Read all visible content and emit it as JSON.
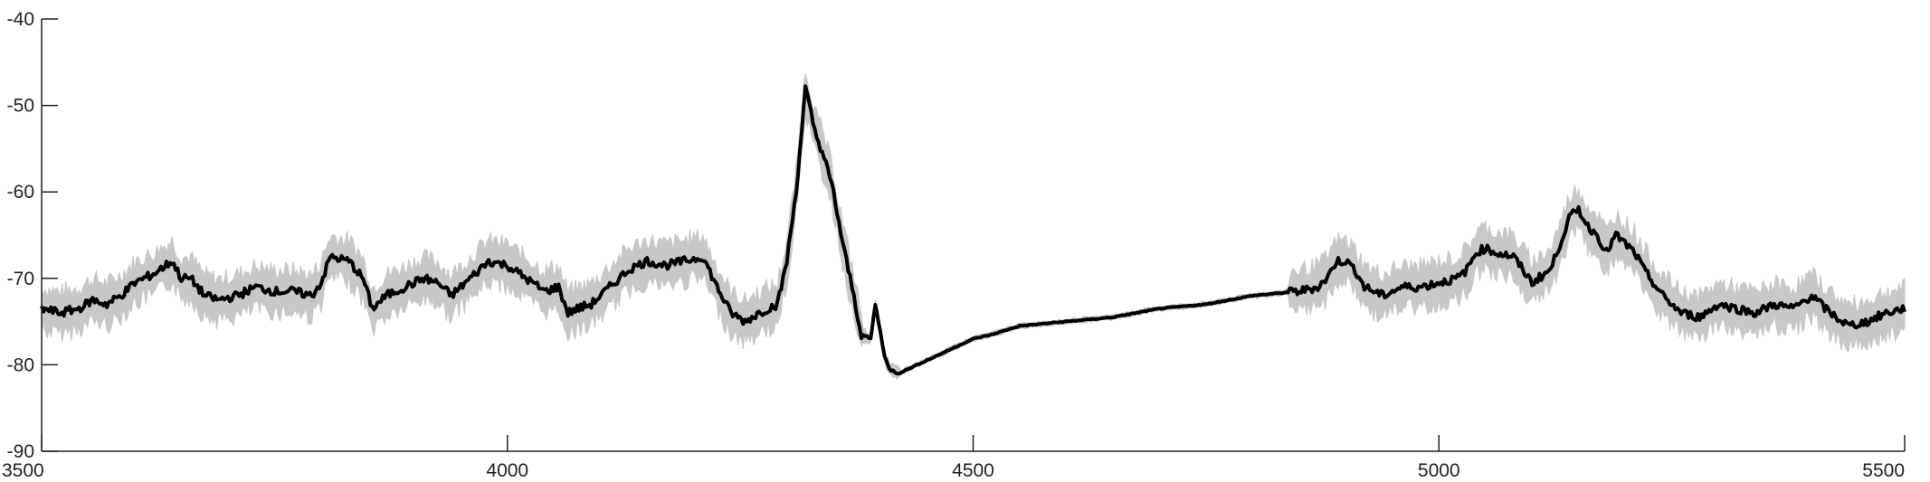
{
  "chart_data": {
    "type": "line",
    "title": "",
    "xlabel": "",
    "ylabel": "",
    "xlim": [
      3500,
      5500
    ],
    "ylim": [
      -90,
      -40
    ],
    "x_ticks": [
      3500,
      4000,
      4500,
      5000,
      5500
    ],
    "x_tick_labels": [
      "3500",
      "4000",
      "4500",
      "5000",
      "5500"
    ],
    "y_ticks": [
      -40,
      -50,
      -60,
      -70,
      -80,
      -90
    ],
    "y_tick_labels": [
      "-40",
      "-50",
      "-60",
      "-70",
      "-80",
      "-90"
    ],
    "grid": false,
    "legend": "none",
    "colors": {
      "mean": "#000000",
      "band": "#c8c8c8",
      "axis": "#222222"
    },
    "series": [
      {
        "role": "mean",
        "x": [
          3500,
          3520,
          3540,
          3555,
          3570,
          3585,
          3600,
          3620,
          3640,
          3650,
          3660,
          3675,
          3690,
          3710,
          3730,
          3750,
          3770,
          3790,
          3800,
          3810,
          3830,
          3845,
          3855,
          3870,
          3890,
          3910,
          3925,
          3940,
          3960,
          3980,
          4000,
          4020,
          4040,
          4055,
          4065,
          4075,
          4090,
          4110,
          4130,
          4150,
          4170,
          4190,
          4210,
          4225,
          4240,
          4255,
          4270,
          4290,
          4300,
          4310,
          4320,
          4330,
          4340,
          4350,
          4360,
          4370,
          4380,
          4390,
          4395,
          4400,
          4405,
          4410,
          4420,
          4430,
          4450,
          4480,
          4500,
          4520,
          4550,
          4600,
          4650,
          4700,
          4750,
          4800,
          4850,
          4870,
          4880,
          4890,
          4900,
          4910,
          4920,
          4940,
          4960,
          4980,
          5000,
          5020,
          5030,
          5040,
          5050,
          5060,
          5080,
          5100,
          5120,
          5140,
          5150,
          5160,
          5170,
          5180,
          5190,
          5200,
          5210,
          5220,
          5240,
          5260,
          5280,
          5300,
          5320,
          5340,
          5360,
          5380,
          5400,
          5420,
          5440,
          5460,
          5480,
          5500
        ],
        "y": [
          -73.5,
          -74,
          -73.5,
          -72.5,
          -73,
          -72,
          -70.5,
          -69.5,
          -68,
          -70,
          -70,
          -72,
          -72.5,
          -72,
          -71,
          -71.5,
          -71.5,
          -72,
          -70.5,
          -67.5,
          -68,
          -70,
          -73.5,
          -72,
          -71,
          -70,
          -70.5,
          -72,
          -70,
          -68,
          -68.5,
          -70,
          -71.5,
          -71,
          -74,
          -73.5,
          -73,
          -71,
          -69,
          -68,
          -68.5,
          -68,
          -67.5,
          -71,
          -74,
          -75,
          -74,
          -73,
          -68,
          -60,
          -48,
          -53,
          -56,
          -60,
          -66,
          -71,
          -76.5,
          -77,
          -73,
          -76,
          -79,
          -80.5,
          -81,
          -80.5,
          -79.5,
          -78,
          -77,
          -76.5,
          -75.5,
          -75,
          -74.5,
          -73.5,
          -73,
          -72,
          -71.5,
          -71,
          -70,
          -68,
          -68,
          -69,
          -71,
          -72,
          -71,
          -71,
          -70.5,
          -70,
          -69,
          -67,
          -66.5,
          -67,
          -67.5,
          -70.5,
          -69,
          -63,
          -62,
          -64,
          -65,
          -67,
          -65,
          -66,
          -67,
          -69,
          -72,
          -74,
          -74.5,
          -73,
          -73.5,
          -74,
          -73,
          -73.5,
          -72,
          -74,
          -75.5,
          -75,
          -74,
          -73.5
        ]
      }
    ]
  }
}
